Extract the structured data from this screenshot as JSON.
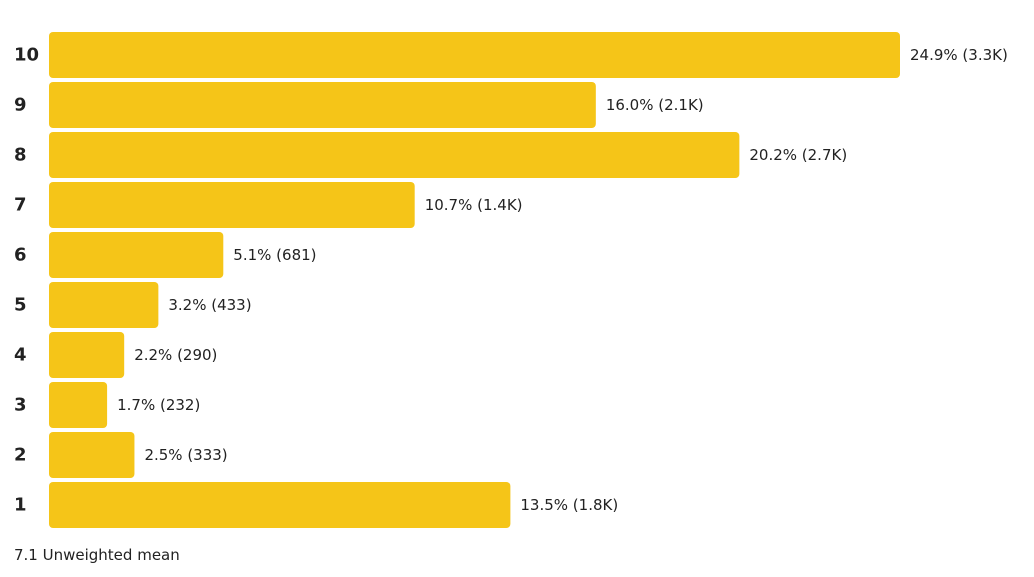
{
  "chart_data": {
    "type": "bar",
    "orientation": "horizontal",
    "categories": [
      "10",
      "9",
      "8",
      "7",
      "6",
      "5",
      "4",
      "3",
      "2",
      "1"
    ],
    "values": [
      24.9,
      16.0,
      20.2,
      10.7,
      5.1,
      3.2,
      2.2,
      1.7,
      2.5,
      13.5
    ],
    "data_labels": [
      "24.9% (3.3K)",
      "16.0% (2.1K)",
      "20.2% (2.7K)",
      "10.7% (1.4K)",
      "5.1% (681)",
      "3.2% (433)",
      "2.2% (290)",
      "1.7% (232)",
      "2.5% (333)",
      "13.5% (1.8K)"
    ],
    "bar_color": "#F5C518",
    "grid": false,
    "legend": "none"
  },
  "footer": {
    "mean_text": "7.1 Unweighted mean"
  }
}
